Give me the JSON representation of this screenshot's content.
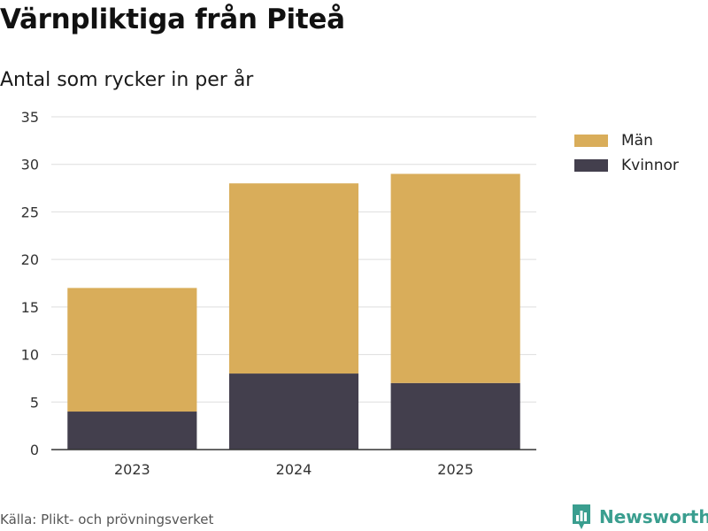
{
  "title": "Värnpliktiga från Piteå",
  "subtitle": "Antal som rycker in per år",
  "source": "Källa: Plikt- och prövningsverket",
  "brand": {
    "name": "Newsworthy",
    "icon": "newsworthy-logo-icon",
    "color": "#3a9e8f"
  },
  "chart_data": {
    "type": "bar",
    "stacked": true,
    "categories": [
      "2023",
      "2024",
      "2025"
    ],
    "series": [
      {
        "name": "Kvinnor",
        "values": [
          4,
          8,
          7
        ],
        "color": "#433f4d"
      },
      {
        "name": "Män",
        "values": [
          13,
          20,
          22
        ],
        "color": "#d9ad5a"
      }
    ],
    "title": "Värnpliktiga från Piteå",
    "subtitle": "Antal som rycker in per år",
    "xlabel": "",
    "ylabel": "",
    "ylim": [
      0,
      35
    ],
    "yticks": [
      0,
      5,
      10,
      15,
      20,
      25,
      30,
      35
    ],
    "grid": true,
    "legend_position": "right",
    "legend": [
      {
        "label": "Män",
        "color": "#d9ad5a"
      },
      {
        "label": "Kvinnor",
        "color": "#433f4d"
      }
    ]
  }
}
